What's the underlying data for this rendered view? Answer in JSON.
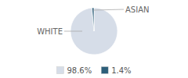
{
  "chart_data": {
    "type": "pie",
    "categories": [
      "WHITE",
      "ASIAN"
    ],
    "values": [
      98.6,
      1.4
    ],
    "value_labels": [
      "98.6%",
      "1.4%"
    ],
    "colors": [
      "#d6dde8",
      "#2d5f7a"
    ],
    "legend": "bottom"
  }
}
